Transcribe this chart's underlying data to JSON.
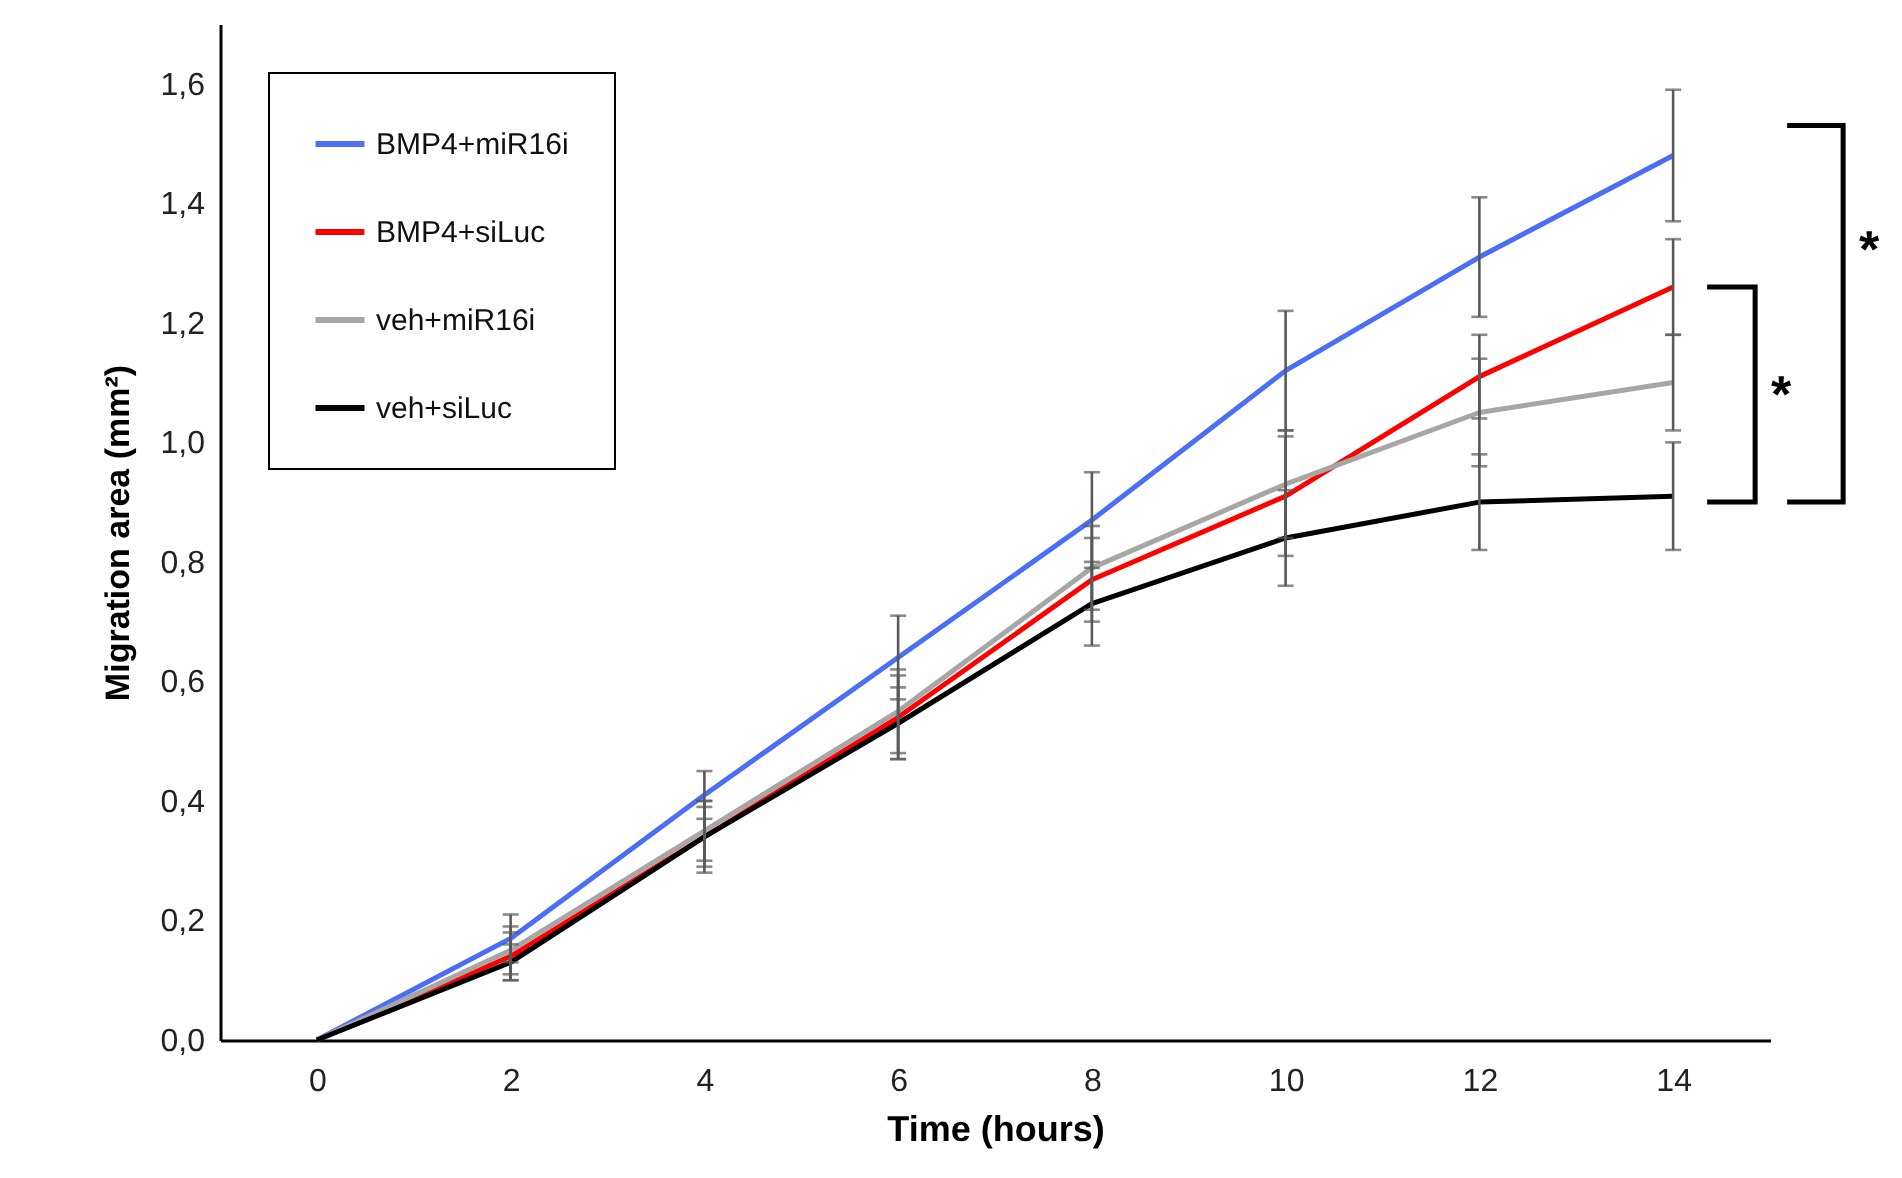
{
  "chart_data": {
    "type": "line",
    "xlabel": "Time (hours)",
    "ylabel": "Migration area (mm²)",
    "x": [
      0,
      2,
      4,
      6,
      8,
      10,
      12,
      14
    ],
    "xlim": [
      -1,
      15
    ],
    "xticks": [
      0,
      2,
      4,
      6,
      8,
      10,
      12,
      14
    ],
    "ylim": [
      0,
      1.7
    ],
    "yticks": [
      {
        "value": 0,
        "label": "0,0"
      },
      {
        "value": 0.2,
        "label": "0,2"
      },
      {
        "value": 0.4,
        "label": "0,4"
      },
      {
        "value": 0.6,
        "label": "0,6"
      },
      {
        "value": 0.8,
        "label": "0,8"
      },
      {
        "value": 1.0,
        "label": "1,0"
      },
      {
        "value": 1.2,
        "label": "1,2"
      },
      {
        "value": 1.4,
        "label": "1,4"
      },
      {
        "value": 1.6,
        "label": "1,6"
      }
    ],
    "grid": false,
    "legend": "top left",
    "marker": "none",
    "line_style": "solid",
    "series": [
      {
        "name": "BMP4+miR16i",
        "color": "#4a6ef5",
        "values": [
          0,
          0.17,
          0.41,
          0.64,
          0.87,
          1.12,
          1.31,
          1.48
        ],
        "errors": [
          null,
          0.04,
          0.04,
          0.07,
          0.08,
          0.1,
          0.1,
          0.11
        ]
      },
      {
        "name": "BMP4+siLuc",
        "color": "#ff0000",
        "values": [
          0,
          0.14,
          0.34,
          0.54,
          0.77,
          0.91,
          1.11,
          1.26
        ],
        "errors": [
          null,
          0.04,
          0.06,
          0.07,
          0.07,
          0.1,
          0.07,
          0.08
        ]
      },
      {
        "name": "veh+miR16i",
        "color": "#a6a6a6",
        "values": [
          0,
          0.15,
          0.35,
          0.55,
          0.79,
          0.93,
          1.05,
          1.1
        ],
        "errors": [
          null,
          0.04,
          0.05,
          0.07,
          0.07,
          0.09,
          0.09,
          0.08
        ]
      },
      {
        "name": "veh+siLuc",
        "color": "#000000",
        "values": [
          0,
          0.13,
          0.34,
          0.53,
          0.73,
          0.84,
          0.9,
          0.91
        ],
        "errors": [
          null,
          0.03,
          0.05,
          0.06,
          0.07,
          0.08,
          0.08,
          0.09
        ]
      }
    ],
    "annotations": [
      "*",
      "*"
    ]
  }
}
